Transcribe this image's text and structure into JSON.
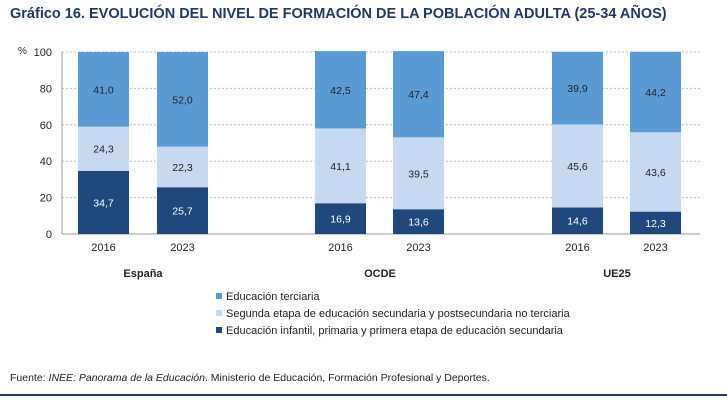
{
  "title": "Gráfico 16. EVOLUCIÓN DEL NIVEL DE FORMACIÓN DE LA POBLACIÓN ADULTA (25-34 AÑOS)",
  "source": {
    "prefix": "Fuente: ",
    "italic": "INEE: Panorama de la Educación",
    "rest": ". Ministerio de Educación, Formación Profesional y Deportes."
  },
  "chart_data": {
    "type": "bar",
    "stacked": true,
    "ylabel": "%",
    "ylim": [
      0,
      100
    ],
    "yticks": [
      0,
      20,
      40,
      60,
      80,
      100
    ],
    "grid": true,
    "legend_position": "bottom-center",
    "groups": [
      {
        "name": "España",
        "categories": [
          "2016",
          "2023"
        ]
      },
      {
        "name": "OCDE",
        "categories": [
          "2016",
          "2023"
        ]
      },
      {
        "name": "UE25",
        "categories": [
          "2016",
          "2023"
        ]
      }
    ],
    "series": [
      {
        "name": "Educación infantil, primaria y primera etapa de educación secundaria",
        "color": "#1f497d",
        "label_color": "#ffffff",
        "values": [
          34.7,
          25.7,
          16.9,
          13.6,
          14.6,
          12.3
        ],
        "labels": [
          "34,7",
          "25,7",
          "16,9",
          "13,6",
          "14,6",
          "12,3"
        ]
      },
      {
        "name": "Segunda etapa de educación secundaria y postsecundaria no terciaria",
        "color": "#c6d9f1",
        "label_color": "#222222",
        "values": [
          24.3,
          22.3,
          41.1,
          39.5,
          45.6,
          43.6
        ],
        "labels": [
          "24,3",
          "22,3",
          "41,1",
          "39,5",
          "45,6",
          "43,6"
        ]
      },
      {
        "name": "Educación terciaria",
        "color": "#5b9bd5",
        "label_color": "#222222",
        "values": [
          41.0,
          52.0,
          42.5,
          47.4,
          39.9,
          44.2
        ],
        "labels": [
          "41,0",
          "52,0",
          "42,5",
          "47,4",
          "39,9",
          "44,2"
        ]
      }
    ],
    "legend_order": [
      2,
      1,
      0
    ]
  }
}
